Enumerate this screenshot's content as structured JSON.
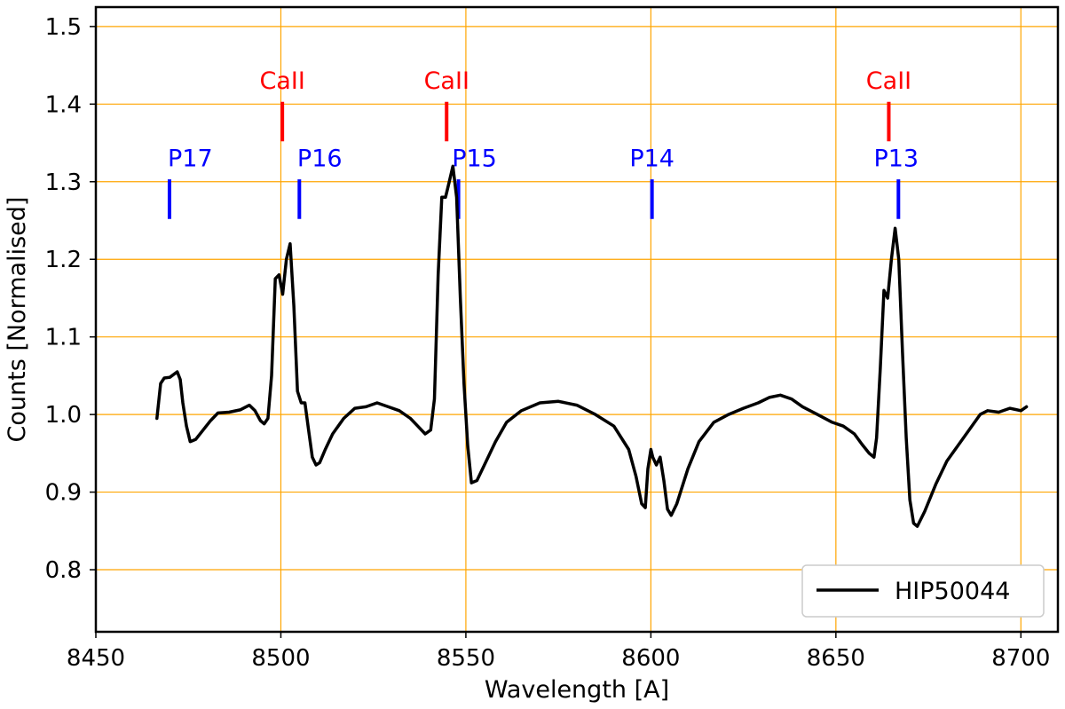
{
  "chart_data": {
    "type": "line",
    "title": "",
    "xlabel": "Wavelength [A]",
    "ylabel": "Counts [Normalised]",
    "xlim": [
      8450,
      8710
    ],
    "ylim": [
      0.72,
      1.525
    ],
    "xticks": [
      8450,
      8500,
      8550,
      8600,
      8650,
      8700
    ],
    "xtick_labels": [
      "8450",
      "8500",
      "8550",
      "8600",
      "8650",
      "8700"
    ],
    "yticks": [
      0.8,
      0.9,
      1.0,
      1.1,
      1.2,
      1.3,
      1.4,
      1.5
    ],
    "ytick_labels": [
      "0.8",
      "0.9",
      "1.0",
      "1.1",
      "1.2",
      "1.3",
      "1.4",
      "1.5"
    ],
    "grid": true,
    "grid_color": "#FFA500",
    "legend_position": "lower-right",
    "series": [
      {
        "name": "HIP50044",
        "color": "#000000",
        "x": [
          8466.5,
          8467.5,
          8468.5,
          8470,
          8472,
          8472.8,
          8473.5,
          8474.5,
          8475.5,
          8477,
          8479,
          8481,
          8483,
          8486,
          8489,
          8491.5,
          8493,
          8494.5,
          8495.5,
          8496.5,
          8497.5,
          8498.5,
          8499.5,
          8500.5,
          8501.5,
          8502.5,
          8503.5,
          8504.5,
          8505.5,
          8506.5,
          8507.5,
          8508.5,
          8509.5,
          8510.5,
          8512,
          8514,
          8517,
          8520,
          8523,
          8526,
          8529,
          8532,
          8535,
          8537,
          8539,
          8540.5,
          8541.5,
          8542.5,
          8543.5,
          8544.5,
          8545.5,
          8546.5,
          8547.5,
          8548.5,
          8549.5,
          8550.5,
          8551.5,
          8553,
          8555,
          8558,
          8561,
          8565,
          8570,
          8575,
          8580,
          8585,
          8590,
          8594,
          8596,
          8597.5,
          8598.5,
          8599.2,
          8600,
          8600.5,
          8601.5,
          8602.5,
          8603.5,
          8604.5,
          8605.5,
          8607,
          8610,
          8613,
          8617,
          8621,
          8625,
          8629,
          8632,
          8635,
          8638,
          8641,
          8645,
          8649,
          8652,
          8655,
          8657,
          8659,
          8660.3,
          8661,
          8662,
          8663,
          8664,
          8665,
          8666,
          8667,
          8668,
          8669,
          8670,
          8671,
          8672,
          8674,
          8677,
          8680,
          8683,
          8686,
          8689,
          8691,
          8694,
          8697,
          8700,
          8701.5
        ],
        "y": [
          0.995,
          1.04,
          1.047,
          1.048,
          1.055,
          1.045,
          1.015,
          0.985,
          0.965,
          0.968,
          0.98,
          0.992,
          1.002,
          1.003,
          1.006,
          1.012,
          1.005,
          0.992,
          0.988,
          0.995,
          1.05,
          1.175,
          1.18,
          1.155,
          1.2,
          1.22,
          1.14,
          1.03,
          1.015,
          1.015,
          0.98,
          0.945,
          0.935,
          0.938,
          0.955,
          0.975,
          0.995,
          1.008,
          1.01,
          1.015,
          1.01,
          1.005,
          0.995,
          0.985,
          0.975,
          0.98,
          1.02,
          1.18,
          1.28,
          1.28,
          1.3,
          1.32,
          1.28,
          1.15,
          1.04,
          0.96,
          0.912,
          0.915,
          0.935,
          0.965,
          0.99,
          1.005,
          1.015,
          1.017,
          1.012,
          1.0,
          0.985,
          0.955,
          0.92,
          0.885,
          0.88,
          0.93,
          0.955,
          0.945,
          0.935,
          0.945,
          0.915,
          0.878,
          0.87,
          0.885,
          0.93,
          0.965,
          0.99,
          1.0,
          1.008,
          1.015,
          1.022,
          1.025,
          1.02,
          1.01,
          1.0,
          0.99,
          0.985,
          0.975,
          0.962,
          0.95,
          0.945,
          0.97,
          1.06,
          1.16,
          1.15,
          1.2,
          1.24,
          1.2,
          1.08,
          0.97,
          0.89,
          0.86,
          0.856,
          0.875,
          0.91,
          0.94,
          0.96,
          0.98,
          1.0,
          1.005,
          1.003,
          1.008,
          1.005,
          1.01
        ]
      }
    ],
    "annotations": [
      {
        "label": "CaII",
        "x": 8500.4,
        "y_bottom": 1.352,
        "y_top": 1.403,
        "color": "#FF0000",
        "label_x": 8500.4,
        "label_y": 1.42
      },
      {
        "label": "CaII",
        "x": 8544.8,
        "y_bottom": 1.352,
        "y_top": 1.403,
        "color": "#FF0000",
        "label_x": 8544.8,
        "label_y": 1.42
      },
      {
        "label": "CaII",
        "x": 8664.3,
        "y_bottom": 1.352,
        "y_top": 1.403,
        "color": "#FF0000",
        "label_x": 8664.3,
        "label_y": 1.42
      },
      {
        "label": "P17",
        "x": 8469.9,
        "y_bottom": 1.252,
        "y_top": 1.303,
        "color": "#0000FF",
        "label_x": 8475.5,
        "label_y": 1.32
      },
      {
        "label": "P16",
        "x": 8505.0,
        "y_bottom": 1.252,
        "y_top": 1.303,
        "color": "#0000FF",
        "label_x": 8510.5,
        "label_y": 1.32
      },
      {
        "label": "P15",
        "x": 8548.0,
        "y_bottom": 1.252,
        "y_top": 1.303,
        "color": "#0000FF",
        "label_x": 8552.3,
        "label_y": 1.32
      },
      {
        "label": "P14",
        "x": 8600.3,
        "y_bottom": 1.252,
        "y_top": 1.303,
        "color": "#0000FF",
        "label_x": 8600.3,
        "label_y": 1.32
      },
      {
        "label": "P13",
        "x": 8666.9,
        "y_bottom": 1.252,
        "y_top": 1.303,
        "color": "#0000FF",
        "label_x": 8666.3,
        "label_y": 1.32
      }
    ]
  }
}
